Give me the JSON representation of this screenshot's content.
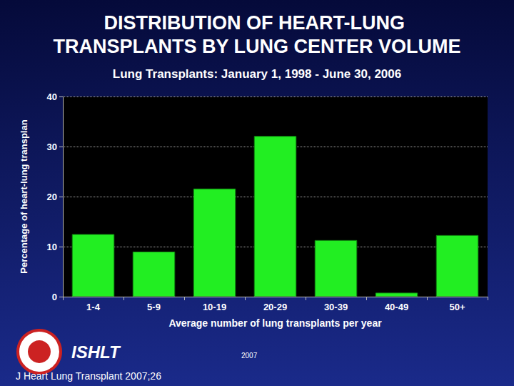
{
  "chart_data": {
    "type": "bar",
    "title": "DISTRIBUTION OF HEART-LUNG TRANSPLANTS BY LUNG CENTER VOLUME",
    "subtitle": "Lung Transplants: January 1, 1998 - June 30, 2006",
    "x_label": "Average number of lung transplants per year",
    "y_label": "Percentage of heart-lung transplan",
    "categories": [
      "1-4",
      "5-9",
      "10-19",
      "20-29",
      "30-39",
      "40-49",
      "50+"
    ],
    "values": [
      12.5,
      9.0,
      21.6,
      32.1,
      11.3,
      0.8,
      12.3
    ],
    "color": "#22ee22",
    "ylim": [
      0,
      40
    ],
    "yticks": [
      0,
      10,
      20,
      30,
      40
    ],
    "grid": true,
    "annotations": [
      "ISHLT",
      "2007",
      "J Heart Lung Transplant 2007;26"
    ]
  }
}
